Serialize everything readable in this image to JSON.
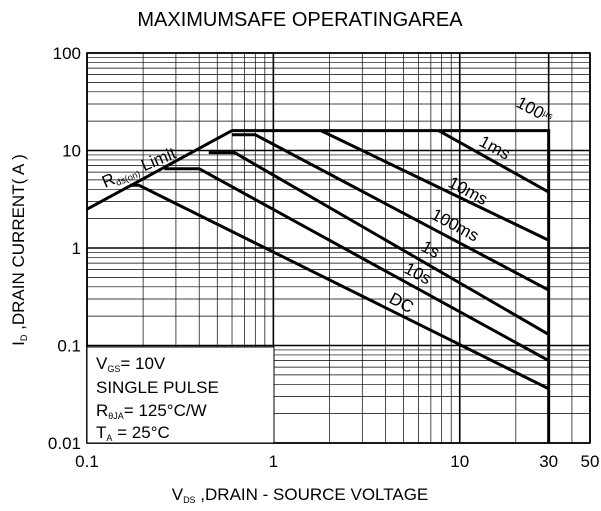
{
  "chart_data": {
    "type": "line",
    "title": "MAXIMUMSAFE OPERATINGAREA",
    "x_label": {
      "main": "V",
      "sub": "DS",
      "rest": " ,DRAIN - SOURCE VOLTAGE"
    },
    "y_label": {
      "main": "I",
      "sub": "D",
      "rest": " ,DRAIN CURRENT( A )"
    },
    "log_x": true,
    "log_y": true,
    "grid": true,
    "color": "#000000",
    "xlim": [
      0.1,
      50
    ],
    "xticks": [
      0.1,
      1,
      10,
      30,
      50
    ],
    "ylim": [
      0.01,
      100
    ],
    "yticks": [
      0.01,
      0.1,
      1,
      10,
      100
    ],
    "series": [
      {
        "color": "#000000",
        "x": [
          0.1,
          0.6
        ],
        "values": [
          2.5,
          16
        ]
      },
      {
        "color": "#000000",
        "x": [
          0.6,
          30,
          30
        ],
        "values": [
          16,
          16,
          0.01
        ]
      },
      {
        "color": "#000000",
        "x": [
          7.7,
          30
        ],
        "values": [
          16,
          3.75
        ]
      },
      {
        "color": "#000000",
        "x": [
          1.8,
          30
        ],
        "values": [
          16,
          1.2
        ]
      },
      {
        "color": "#000000",
        "x": [
          0.6,
          0.8,
          30
        ],
        "values": [
          14.5,
          14.5,
          0.37
        ]
      },
      {
        "color": "#000000",
        "x": [
          0.45,
          0.62,
          30
        ],
        "values": [
          9.5,
          9.5,
          0.13
        ]
      },
      {
        "color": "#000000",
        "x": [
          0.26,
          0.4,
          30
        ],
        "values": [
          6.5,
          6.5,
          0.07
        ]
      },
      {
        "color": "#000000",
        "x": [
          0.17,
          0.19,
          30
        ],
        "values": [
          4.4,
          4.4,
          0.036
        ]
      }
    ],
    "annotations": {
      "limit": {
        "main": "R",
        "sub": "ds(on)",
        "rest": " Limit"
      },
      "us100": {
        "main": "100",
        "sub": "µs"
      },
      "ms1": "1ms",
      "ms10": "10ms",
      "ms100": "100ms",
      "s1": "1s",
      "s10": "10s",
      "dc": "DC"
    },
    "conditions": {
      "vgs": {
        "main": "V",
        "sub": "GS",
        "rest": "= 10V"
      },
      "pulse": "SINGLE PULSE",
      "rth": {
        "main": "R",
        "sub": "θJA",
        "rest": "= 125°C/W"
      },
      "ta": {
        "main": "T",
        "sub": "A",
        "rest": " = 25°C"
      }
    }
  }
}
